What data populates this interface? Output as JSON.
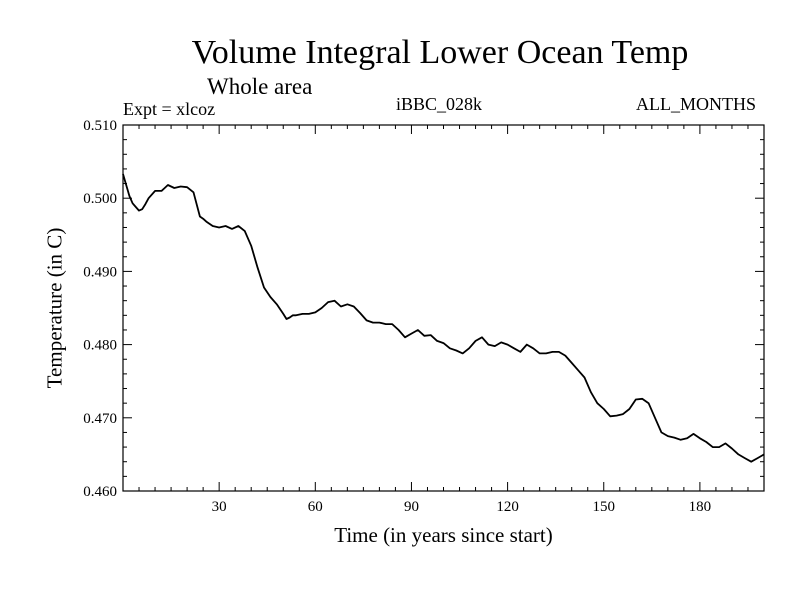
{
  "chart_data": {
    "type": "line",
    "title": "Volume Integral Lower Ocean Temp",
    "subtitle": "Whole area",
    "expt_label": "Expt = xlcoz",
    "run_id": "iBBC_028k",
    "months_label": "ALL_MONTHS",
    "xlabel": "Time (in years since start)",
    "ylabel": "Temperature (in C)",
    "xlim": [
      0,
      200
    ],
    "ylim": [
      0.46,
      0.51
    ],
    "xticks": [
      30,
      60,
      90,
      120,
      150,
      180
    ],
    "xtick_labels": [
      "30",
      "60",
      "90",
      "120",
      "150",
      "180"
    ],
    "yticks": [
      0.46,
      0.47,
      0.48,
      0.49,
      0.5,
      0.51
    ],
    "ytick_labels": [
      "0.460",
      "0.470",
      "0.480",
      "0.490",
      "0.500",
      "0.510"
    ],
    "series": [
      {
        "name": "Volume Integral Lower Ocean Temp",
        "x": [
          0,
          1,
          2,
          3,
          4,
          5,
          6,
          7,
          8,
          10,
          12,
          13,
          14,
          16,
          18,
          20,
          22,
          24,
          25,
          26,
          28,
          30,
          32,
          34,
          36,
          38,
          40,
          42,
          44,
          46,
          48,
          50,
          51,
          52,
          53,
          54,
          56,
          58,
          60,
          62,
          64,
          66,
          68,
          70,
          72,
          74,
          76,
          78,
          80,
          82,
          84,
          86,
          88,
          90,
          92,
          94,
          96,
          98,
          100,
          102,
          104,
          106,
          108,
          110,
          112,
          114,
          116,
          118,
          120,
          122,
          124,
          126,
          128,
          130,
          132,
          134,
          136,
          138,
          140,
          142,
          144,
          146,
          148,
          150,
          152,
          154,
          156,
          158,
          160,
          162,
          164,
          166,
          168,
          170,
          172,
          174,
          176,
          178,
          180,
          182,
          184,
          186,
          188,
          190,
          192,
          194,
          196,
          198,
          200
        ],
        "values": [
          0.5033,
          0.5018,
          0.5003,
          0.4993,
          0.4988,
          0.4983,
          0.4985,
          0.4992,
          0.5,
          0.501,
          0.501,
          0.5014,
          0.5018,
          0.5014,
          0.5016,
          0.5015,
          0.5008,
          0.4975,
          0.4972,
          0.4968,
          0.4962,
          0.496,
          0.4962,
          0.4958,
          0.4962,
          0.4955,
          0.4935,
          0.4905,
          0.4878,
          0.4865,
          0.4855,
          0.4842,
          0.4835,
          0.4837,
          0.484,
          0.484,
          0.4842,
          0.4842,
          0.4844,
          0.485,
          0.4858,
          0.486,
          0.4852,
          0.4855,
          0.4852,
          0.4843,
          0.4833,
          0.483,
          0.483,
          0.4828,
          0.4828,
          0.482,
          0.481,
          0.4815,
          0.482,
          0.4812,
          0.4813,
          0.4805,
          0.4802,
          0.4795,
          0.4792,
          0.4788,
          0.4795,
          0.4805,
          0.481,
          0.48,
          0.4798,
          0.4803,
          0.48,
          0.4795,
          0.479,
          0.48,
          0.4795,
          0.4788,
          0.4788,
          0.479,
          0.479,
          0.4785,
          0.4775,
          0.4765,
          0.4755,
          0.4735,
          0.472,
          0.4712,
          0.4702,
          0.4703,
          0.4705,
          0.4712,
          0.4725,
          0.4726,
          0.472,
          0.47,
          0.468,
          0.4675,
          0.4673,
          0.467,
          0.4672,
          0.4678,
          0.4672,
          0.4667,
          0.466,
          0.466,
          0.4665,
          0.4658,
          0.465,
          0.4645,
          0.464,
          0.4645,
          0.465
        ]
      }
    ],
    "grid": false,
    "legend": "none"
  }
}
